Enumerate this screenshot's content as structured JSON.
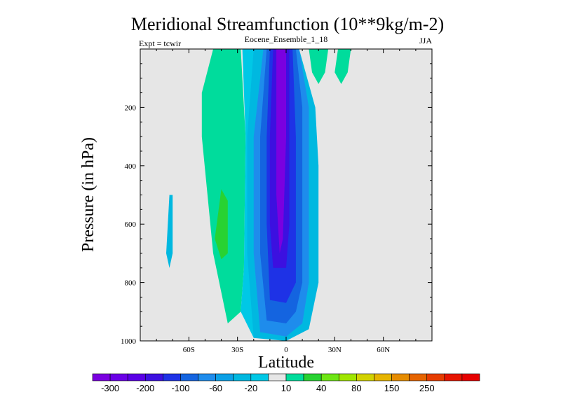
{
  "chart_data": {
    "type": "contour",
    "title": "Meridional Streamfunction (10**9kg/m-2)",
    "subtitle_left": "Expt = tcwir",
    "subtitle_center": "Eocene_Ensemble_1_18",
    "subtitle_right": "JJA",
    "xlabel": "Latitude",
    "ylabel": "Pressure (in hPa)",
    "xlim": [
      -90,
      90
    ],
    "ylim": [
      1000,
      0
    ],
    "x_ticks": [
      {
        "value": -60,
        "label": "60S"
      },
      {
        "value": -30,
        "label": "30S"
      },
      {
        "value": 0,
        "label": "0"
      },
      {
        "value": 30,
        "label": "30N"
      },
      {
        "value": 60,
        "label": "60N"
      }
    ],
    "y_ticks": [
      {
        "value": 200,
        "label": "200"
      },
      {
        "value": 400,
        "label": "400"
      },
      {
        "value": 600,
        "label": "600"
      },
      {
        "value": 800,
        "label": "800"
      },
      {
        "value": 1000,
        "label": "1000"
      }
    ],
    "background_color": "#e6e6e6",
    "colorbar": {
      "colors": [
        "#7a00e0",
        "#6a00e6",
        "#5a00e6",
        "#3c10e0",
        "#1e32e6",
        "#1464e0",
        "#1e8cec",
        "#0aa0e6",
        "#00b8e0",
        "#00c8e6",
        "#e6e6e6",
        "#00dc9c",
        "#28d232",
        "#6ee614",
        "#a0e600",
        "#d2d200",
        "#e6b400",
        "#e68c00",
        "#e66400",
        "#e63c00",
        "#e61400",
        "#e60000"
      ],
      "labels": [
        "-300",
        "-200",
        "-100",
        "-60",
        "-20",
        "10",
        "40",
        "80",
        "150",
        "250"
      ],
      "label_positions": [
        1,
        3,
        5,
        7,
        9,
        11,
        13,
        15,
        17,
        19
      ]
    },
    "regions": [
      {
        "name": "sh-outer-band",
        "color": "#00dc9c",
        "points": [
          [
            -45,
            0
          ],
          [
            -28,
            0
          ],
          [
            -25,
            300
          ],
          [
            -26,
            750
          ],
          [
            -28,
            900
          ],
          [
            -36,
            940
          ],
          [
            -45,
            700
          ],
          [
            -52,
            300
          ],
          [
            -52,
            150
          ]
        ]
      },
      {
        "name": "sh-inner-band",
        "color": "#00c8e6",
        "points": [
          [
            -27,
            0
          ],
          [
            -8,
            0
          ],
          [
            -8,
            300
          ],
          [
            -10,
            900
          ],
          [
            -20,
            990
          ],
          [
            -28,
            900
          ],
          [
            -26,
            750
          ],
          [
            -25,
            300
          ]
        ]
      },
      {
        "name": "eq-band-1",
        "color": "#00b8e0",
        "points": [
          [
            -20,
            0
          ],
          [
            8,
            0
          ],
          [
            18,
            200
          ],
          [
            20,
            400
          ],
          [
            20,
            800
          ],
          [
            14,
            960
          ],
          [
            0,
            1000
          ],
          [
            -20,
            990
          ],
          [
            -24,
            700
          ],
          [
            -24,
            300
          ]
        ]
      },
      {
        "name": "eq-band-2",
        "color": "#1e8cec",
        "points": [
          [
            -14,
            0
          ],
          [
            8,
            0
          ],
          [
            14,
            200
          ],
          [
            14,
            800
          ],
          [
            10,
            940
          ],
          [
            0,
            985
          ],
          [
            -16,
            970
          ],
          [
            -20,
            700
          ],
          [
            -20,
            300
          ]
        ]
      },
      {
        "name": "eq-band-3",
        "color": "#1464e0",
        "points": [
          [
            -12,
            0
          ],
          [
            6,
            0
          ],
          [
            10,
            200
          ],
          [
            10,
            800
          ],
          [
            6,
            900
          ],
          [
            0,
            940
          ],
          [
            -12,
            930
          ],
          [
            -16,
            700
          ],
          [
            -16,
            300
          ]
        ]
      },
      {
        "name": "eq-band-4",
        "color": "#1e32e6",
        "points": [
          [
            -10,
            0
          ],
          [
            4,
            0
          ],
          [
            6,
            300
          ],
          [
            6,
            800
          ],
          [
            0,
            870
          ],
          [
            -10,
            860
          ],
          [
            -12,
            600
          ],
          [
            -12,
            300
          ]
        ]
      },
      {
        "name": "eq-band-5",
        "color": "#3c10e0",
        "points": [
          [
            -8,
            0
          ],
          [
            2,
            0
          ],
          [
            2,
            400
          ],
          [
            2,
            600
          ],
          [
            0,
            750
          ],
          [
            -8,
            750
          ],
          [
            -10,
            600
          ],
          [
            -10,
            300
          ]
        ]
      },
      {
        "name": "eq-core",
        "color": "#7a00e0",
        "points": [
          [
            -6,
            0
          ],
          [
            0,
            0
          ],
          [
            0,
            300
          ],
          [
            -2,
            650
          ],
          [
            -4,
            700
          ],
          [
            -6,
            500
          ],
          [
            -6,
            200
          ]
        ]
      },
      {
        "name": "sh-isolated-min",
        "color": "#00b8e0",
        "points": [
          [
            -72,
            500
          ],
          [
            -70,
            500
          ],
          [
            -70,
            700
          ],
          [
            -72,
            750
          ],
          [
            -74,
            700
          ]
        ]
      },
      {
        "name": "sh-green-patch",
        "color": "#28d232",
        "points": [
          [
            -40,
            480
          ],
          [
            -36,
            520
          ],
          [
            -36,
            700
          ],
          [
            -40,
            720
          ],
          [
            -44,
            650
          ]
        ]
      },
      {
        "name": "nh-patch-1",
        "color": "#00dc9c",
        "points": [
          [
            14,
            0
          ],
          [
            26,
            0
          ],
          [
            24,
            80
          ],
          [
            20,
            120
          ],
          [
            16,
            80
          ]
        ]
      },
      {
        "name": "nh-patch-2",
        "color": "#00dc9c",
        "points": [
          [
            32,
            0
          ],
          [
            40,
            0
          ],
          [
            38,
            80
          ],
          [
            34,
            120
          ],
          [
            30,
            80
          ]
        ]
      }
    ]
  }
}
